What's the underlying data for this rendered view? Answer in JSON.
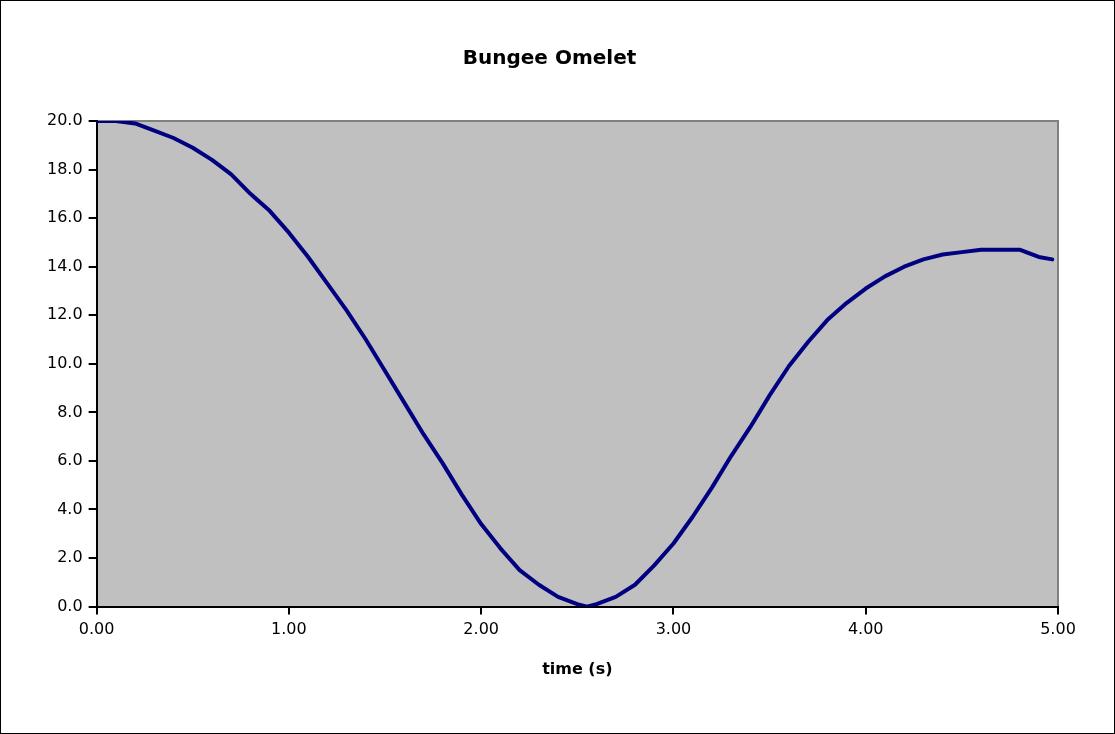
{
  "chart_data": {
    "type": "line",
    "title": "Bungee Omelet",
    "xlabel": "time (s)",
    "xlim": [
      0,
      5
    ],
    "xticks": [
      {
        "value": 0,
        "label": "0.00"
      },
      {
        "value": 1,
        "label": "1.00"
      },
      {
        "value": 2,
        "label": "2.00"
      },
      {
        "value": 3,
        "label": "3.00"
      },
      {
        "value": 4,
        "label": "4.00"
      },
      {
        "value": 5,
        "label": "5.00"
      }
    ],
    "ylim": [
      0,
      20
    ],
    "yticks": [
      {
        "value": 0,
        "label": "0.0"
      },
      {
        "value": 2,
        "label": "2.0"
      },
      {
        "value": 4,
        "label": "4.0"
      },
      {
        "value": 6,
        "label": "6.0"
      },
      {
        "value": 8,
        "label": "8.0"
      },
      {
        "value": 10,
        "label": "10.0"
      },
      {
        "value": 12,
        "label": "12.0"
      },
      {
        "value": 14,
        "label": "14.0"
      },
      {
        "value": 16,
        "label": "16.0"
      },
      {
        "value": 18,
        "label": "18.0"
      },
      {
        "value": 20,
        "label": "20.0"
      }
    ],
    "grid": false,
    "legend": false,
    "marker": "none",
    "line_style": "solid",
    "x": [
      0,
      0.1,
      0.2,
      0.3,
      0.4,
      0.5,
      0.6,
      0.7,
      0.8,
      0.9,
      1.0,
      1.1,
      1.2,
      1.3,
      1.4,
      1.5,
      1.6,
      1.7,
      1.8,
      1.9,
      2.0,
      2.1,
      2.2,
      2.3,
      2.4,
      2.5,
      2.55,
      2.6,
      2.7,
      2.8,
      2.9,
      3.0,
      3.1,
      3.2,
      3.3,
      3.4,
      3.5,
      3.6,
      3.7,
      3.8,
      3.9,
      4.0,
      4.1,
      4.2,
      4.3,
      4.4,
      4.5,
      4.6,
      4.7,
      4.8,
      4.9,
      4.97
    ],
    "series": [
      {
        "color": "#000080",
        "values": [
          20.0,
          20.0,
          19.9,
          19.6,
          19.3,
          18.9,
          18.4,
          17.8,
          17.0,
          16.3,
          15.4,
          14.4,
          13.3,
          12.2,
          11.0,
          9.7,
          8.4,
          7.1,
          5.9,
          4.6,
          3.4,
          2.4,
          1.5,
          0.9,
          0.4,
          0.1,
          0.0,
          0.1,
          0.4,
          0.9,
          1.7,
          2.6,
          3.7,
          4.9,
          6.2,
          7.4,
          8.7,
          9.9,
          10.9,
          11.8,
          12.5,
          13.1,
          13.6,
          14.0,
          14.3,
          14.5,
          14.6,
          14.7,
          14.7,
          14.7,
          14.4,
          14.3
        ]
      }
    ]
  }
}
